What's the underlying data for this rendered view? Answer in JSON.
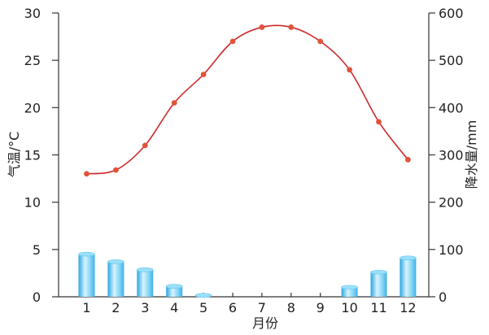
{
  "chart_data": {
    "type": "bar",
    "title": "",
    "categories": [
      "1",
      "2",
      "3",
      "4",
      "5",
      "6",
      "7",
      "8",
      "9",
      "10",
      "11",
      "12"
    ],
    "xlabel": "月份",
    "ylabel_left": "气温/°C",
    "ylabel_right": "降水量/mm",
    "y_left_ticks": [
      "0",
      "5",
      "10",
      "15",
      "20",
      "25",
      "30"
    ],
    "y_right_ticks": [
      "0",
      "100",
      "200",
      "300",
      "400",
      "500",
      "600"
    ],
    "y_left_range": [
      0,
      30
    ],
    "y_right_range": [
      0,
      600
    ],
    "grid": false,
    "series": [
      {
        "kind": "line",
        "axis": "left",
        "color": "#cc2a2a",
        "marker_color": "#e0543a",
        "values": [
          13.0,
          13.4,
          16.0,
          20.5,
          23.5,
          27.0,
          28.5,
          28.5,
          27.0,
          24.0,
          18.5,
          14.5
        ]
      },
      {
        "kind": "bar",
        "axis": "right",
        "color": "#5ec7ef",
        "values": [
          90,
          74,
          57,
          22,
          3,
          0,
          0,
          0,
          0,
          20,
          52,
          82
        ]
      }
    ]
  }
}
